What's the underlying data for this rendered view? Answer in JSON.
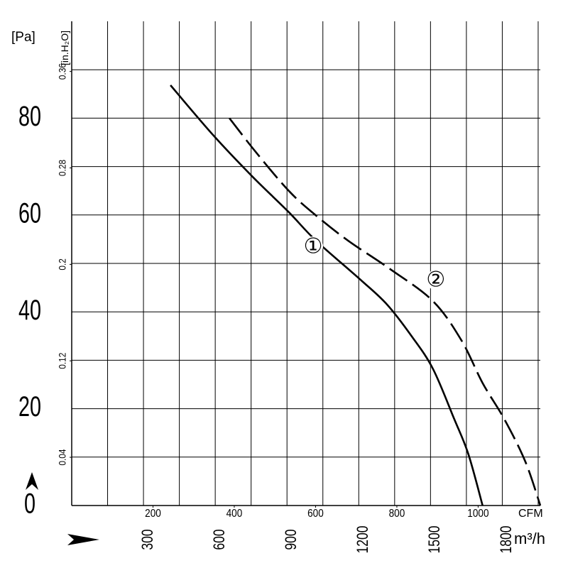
{
  "chart_data": {
    "type": "line",
    "y_label": "[Pa]",
    "y2_label": "[in.H₂O]",
    "x_label": "CFM",
    "x2_label": "m³/h",
    "series": [
      {
        "name": "①",
        "color": "#000000",
        "dash": false,
        "x": [
          243,
          348,
          445,
          534,
          601,
          711,
          776,
          837,
          889,
          941,
          976,
          1011
        ],
        "values": [
          86.8,
          76.5,
          67.9,
          60.6,
          54.7,
          46.6,
          41.5,
          34.9,
          28.2,
          17.9,
          10.6,
          0
        ]
      },
      {
        "name": "②",
        "color": "#000000",
        "dash": true,
        "x": [
          388,
          452,
          534,
          601,
          680,
          784,
          889,
          959,
          1011,
          1064,
          1116,
          1153
        ],
        "values": [
          80.0,
          73.1,
          65.0,
          59.9,
          54.7,
          48.8,
          42.2,
          34.1,
          25.3,
          17.9,
          9.1,
          0
        ]
      }
    ],
    "xlim": [
      0,
      1153
    ],
    "xticks": [
      200,
      400,
      600,
      800,
      1000
    ],
    "x2lim": [
      0,
      1959
    ],
    "x2ticks": [
      300,
      600,
      900,
      1200,
      1500,
      1800
    ],
    "x2grid": [
      150,
      300,
      450,
      600,
      750,
      900,
      1050,
      1200,
      1350,
      1500,
      1650,
      1800,
      1950
    ],
    "ylim": [
      0,
      100
    ],
    "yticks": [
      0,
      20,
      40,
      60,
      80
    ],
    "ygrid": [
      10,
      20,
      30,
      40,
      50,
      60,
      70,
      80,
      90
    ],
    "y2lim": [
      0,
      0.4016
    ],
    "y2ticks": [
      0.04,
      0.12,
      0.2,
      0.28,
      0.36
    ],
    "grid": true
  }
}
